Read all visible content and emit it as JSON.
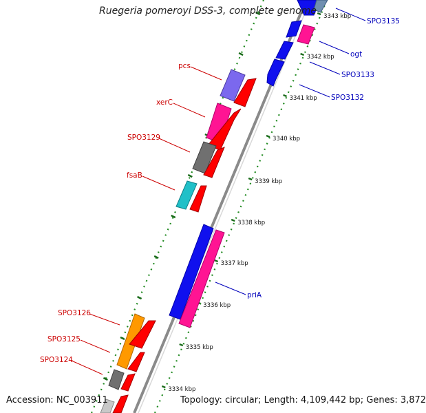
{
  "title": "Ruegeria pomeroyi DSS-3, complete genome",
  "footer": {
    "accession": "Accession: NC_003911",
    "summary": "Topology: circular; Length: 4,109,442 bp; Genes: 3,872"
  },
  "colors": {
    "left_labels": "#cc0000",
    "right_labels": "#0000bb",
    "dna": "#808080",
    "ruler_dots": "#228b22",
    "strand_red": "#ff0000",
    "strand_blue": "#0000ff"
  },
  "ruler_labels": [
    "3343 kbp",
    "3342 kbp",
    "3341 kbp",
    "3340 kbp",
    "3339 kbp",
    "3338 kbp",
    "3337 kbp",
    "3336 kbp",
    "3335 kbp",
    "3334 kbp"
  ],
  "left_genes": [
    "pcs",
    "xerC",
    "SPO3129",
    "fsaB",
    "SPO3126",
    "SPO3125",
    "SPO3124"
  ],
  "right_genes": [
    "SPO3135",
    "ogt",
    "SPO3133",
    "SPO3132",
    "priA"
  ]
}
